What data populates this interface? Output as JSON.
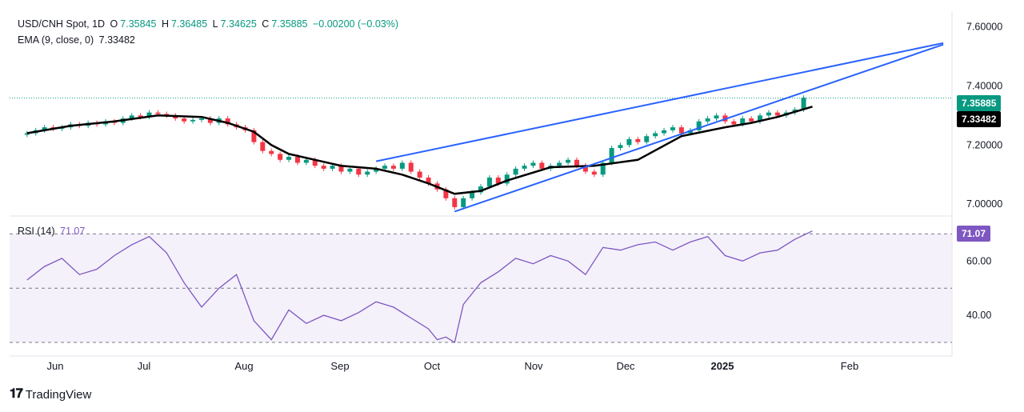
{
  "header": {
    "symbol": "USD/CNH Spot, 1D",
    "open_label": "O",
    "open": "7.35845",
    "high_label": "H",
    "high": "7.36485",
    "low_label": "L",
    "low": "7.34625",
    "close_label": "C",
    "close": "7.35885",
    "change": "−0.00200 (−0.03%)",
    "ema_label": "EMA (9, close, 0)",
    "ema_value": "7.33482"
  },
  "rsi_header": {
    "label": "RSI (14)",
    "value": "71.07"
  },
  "price_labels": {
    "last_price": "7.35885",
    "ema": "7.33482",
    "rsi": "71.07"
  },
  "colors": {
    "up": "#089981",
    "down": "#f23645",
    "ema": "#000000",
    "trendline": "#2962ff",
    "rsi": "#7e57c2",
    "rsi_band": "#ede7f6"
  },
  "footer": {
    "brand": "TradingView"
  },
  "chart_data": [
    {
      "type": "candlestick",
      "title": "USD/CNH Spot, 1D",
      "x_ticks": [
        "Jun",
        "Jul",
        "Aug",
        "Sep",
        "Oct",
        "Nov",
        "Dec",
        "2025",
        "Feb"
      ],
      "y_ticks": [
        "7.60000",
        "7.40000",
        "7.20000",
        "7.00000"
      ],
      "ylim": [
        6.96,
        7.65
      ],
      "ema": {
        "name": "EMA (9, close, 0)",
        "last": 7.33482,
        "x": [
          0,
          5,
          10,
          15,
          20,
          23,
          26,
          28,
          30,
          33,
          36,
          40,
          43,
          46,
          49,
          52,
          55,
          60,
          65,
          70,
          75,
          80,
          83,
          86,
          90
        ],
        "y": [
          7.24,
          7.265,
          7.28,
          7.3,
          7.295,
          7.275,
          7.245,
          7.2,
          7.17,
          7.15,
          7.13,
          7.12,
          7.1,
          7.07,
          7.035,
          7.045,
          7.08,
          7.125,
          7.13,
          7.15,
          7.23,
          7.26,
          7.275,
          7.295,
          7.33
        ]
      },
      "candles_close": [
        7.24,
        7.25,
        7.26,
        7.255,
        7.26,
        7.27,
        7.265,
        7.275,
        7.27,
        7.28,
        7.275,
        7.29,
        7.3,
        7.295,
        7.31,
        7.305,
        7.3,
        7.29,
        7.28,
        7.285,
        7.29,
        7.275,
        7.29,
        7.27,
        7.26,
        7.25,
        7.21,
        7.18,
        7.17,
        7.15,
        7.16,
        7.14,
        7.15,
        7.13,
        7.12,
        7.13,
        7.11,
        7.12,
        7.1,
        7.11,
        7.12,
        7.13,
        7.12,
        7.14,
        7.11,
        7.09,
        7.07,
        7.05,
        7.02,
        6.99,
        7.02,
        7.04,
        7.06,
        7.09,
        7.07,
        7.1,
        7.12,
        7.13,
        7.14,
        7.12,
        7.13,
        7.14,
        7.15,
        7.13,
        7.11,
        7.1,
        7.14,
        7.19,
        7.2,
        7.22,
        7.21,
        7.23,
        7.24,
        7.25,
        7.26,
        7.24,
        7.25,
        7.28,
        7.29,
        7.3,
        7.28,
        7.27,
        7.29,
        7.28,
        7.3,
        7.31,
        7.3,
        7.31,
        7.32,
        7.36
      ],
      "trendlines": [
        {
          "from": [
            40,
            7.145
          ],
          "to": [
            105,
            7.545
          ]
        },
        {
          "from": [
            49,
            6.975
          ],
          "to": [
            105,
            7.54
          ]
        }
      ],
      "last_close": 7.35885
    },
    {
      "type": "line",
      "title": "RSI (14)",
      "y_ticks": [
        "60.00",
        "40.00"
      ],
      "ylim": [
        25,
        76
      ],
      "bands": [
        30,
        50,
        70
      ],
      "x": [
        0,
        2,
        4,
        6,
        8,
        10,
        12,
        14,
        16,
        18,
        20,
        22,
        24,
        26,
        28,
        30,
        32,
        34,
        36,
        38,
        40,
        42,
        44,
        46,
        47,
        48,
        49,
        50,
        52,
        54,
        56,
        58,
        60,
        62,
        64,
        66,
        68,
        70,
        72,
        74,
        76,
        78,
        80,
        82,
        84,
        86,
        88,
        90
      ],
      "values": [
        53,
        58,
        61,
        55,
        57,
        62,
        66,
        69,
        63,
        52,
        43,
        50,
        55,
        38,
        31,
        42,
        37,
        40,
        38,
        41,
        45,
        43,
        39,
        35,
        31,
        32,
        30,
        44,
        52,
        56,
        61,
        59,
        62,
        60,
        55,
        65,
        64,
        66,
        67,
        64,
        67,
        69,
        62,
        60,
        63,
        64,
        68,
        71.07
      ]
    }
  ]
}
